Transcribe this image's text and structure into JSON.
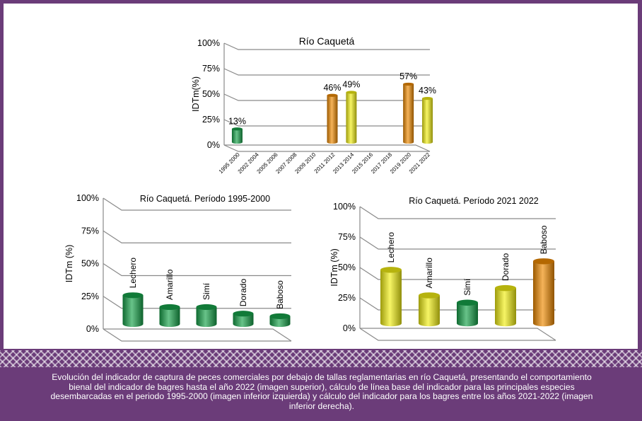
{
  "caption": "Evolución del indicador de captura de peces comerciales por debajo de tallas reglamentarias en río Caquetá, presentando el comportamiento bienal del indicador de bagres hasta el año 2022 (imagen superior), cálculo de línea base del indicador para las principales especies desembarcadas en el periodo 1995-2000 (imagen inferior izquierda) y cálculo del indicador para los bagres entre los años 2021-2022 (imagen inferior derecha).",
  "colors": {
    "green": "#16a34a",
    "orange": "#f08a00",
    "yellow": "#f2ef12",
    "frame": "#6b3c79"
  },
  "chart_data": [
    {
      "type": "bar",
      "title": "Río Caquetá",
      "ylabel": "IDTm(%)",
      "ylim": [
        0,
        100
      ],
      "yticks": [
        "0%",
        "25%",
        "50%",
        "75%",
        "100%"
      ],
      "categories": [
        "1995 2000",
        "2002 2004",
        "2005 2006",
        "2007 2008",
        "2009 2010",
        "2011 2012",
        "2013 2014",
        "2015 2016",
        "2017 2018",
        "2019 2020",
        "2021 2022"
      ],
      "values": [
        13,
        null,
        null,
        null,
        null,
        46,
        49,
        null,
        null,
        57,
        43
      ],
      "labels": [
        "13%",
        "",
        "",
        "",
        "",
        "46%",
        "49%",
        "",
        "",
        "57%",
        "43%"
      ],
      "bar_colors": [
        "green",
        "",
        "",
        "",
        "",
        "orange",
        "yellow",
        "",
        "",
        "orange",
        "yellow"
      ]
    },
    {
      "type": "bar",
      "title": "Río Caquetá. Período 1995-2000",
      "ylabel": "IDTm (%)",
      "ylim": [
        0,
        100
      ],
      "yticks": [
        "0%",
        "25%",
        "50%",
        "75%",
        "100%"
      ],
      "categories": [
        "Lechero",
        "Amarillo",
        "Simí",
        "Dorado",
        "Baboso"
      ],
      "values": [
        22,
        13,
        13,
        8,
        6
      ],
      "bar_colors": [
        "green",
        "green",
        "green",
        "green",
        "green"
      ]
    },
    {
      "type": "bar",
      "title": "Río Caquetá. Período 2021 2022",
      "ylabel": "IDTm (%)",
      "ylim": [
        0,
        100
      ],
      "yticks": [
        "0%",
        "25%",
        "50%",
        "75%",
        "100%"
      ],
      "categories": [
        "Lechero",
        "Amarillo",
        "Simí",
        "Dorado",
        "Baboso"
      ],
      "values": [
        44,
        23,
        17,
        29,
        51
      ],
      "bar_colors": [
        "yellow",
        "yellow",
        "green",
        "yellow",
        "orange"
      ]
    }
  ]
}
